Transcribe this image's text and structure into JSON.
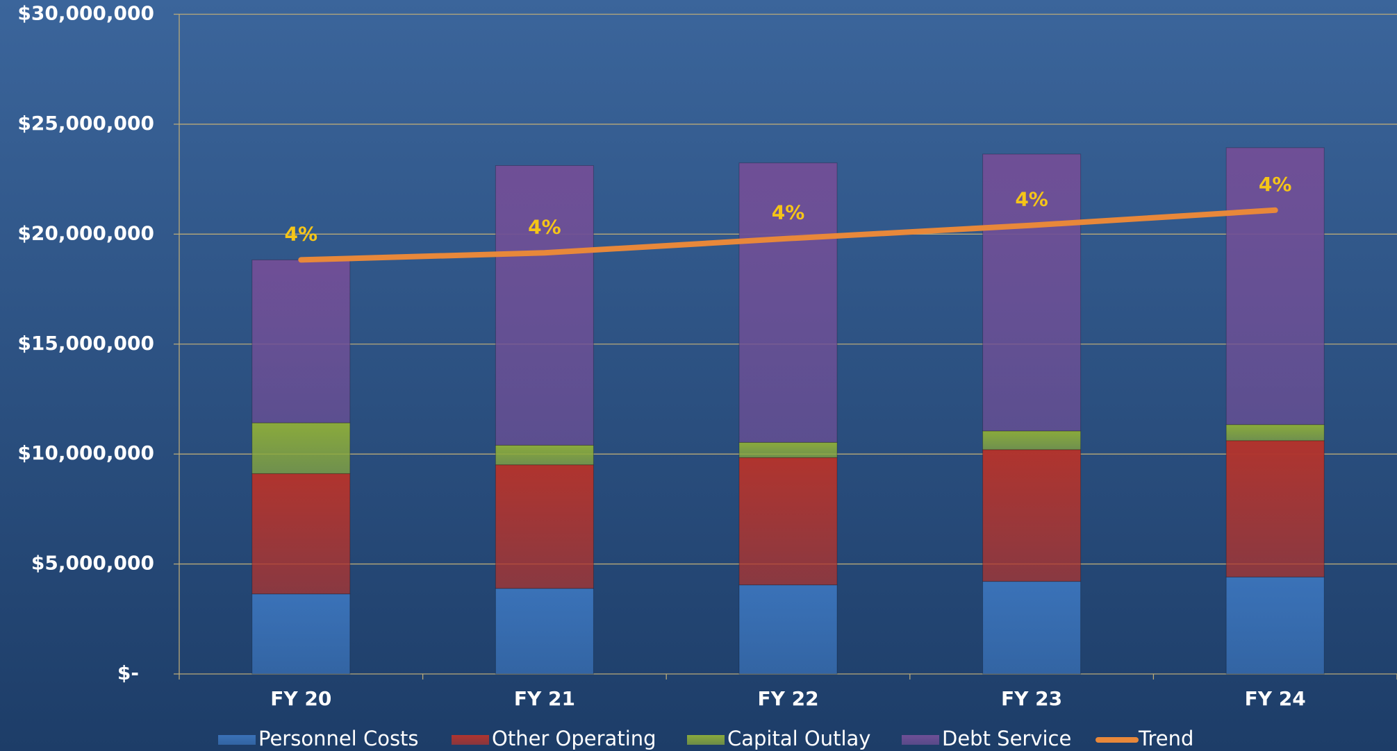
{
  "chart_data": {
    "type": "stacked_bar_line",
    "categories": [
      "FY 20",
      "FY 21",
      "FY 22",
      "FY 23",
      "FY 24"
    ],
    "series": [
      {
        "name": "Personnel Costs",
        "color": "#3a72b8",
        "values": [
          3640000,
          3890000,
          4050000,
          4210000,
          4410000
        ]
      },
      {
        "name": "Other Operating",
        "color": "#b0342e",
        "values": [
          5470000,
          5620000,
          5790000,
          5990000,
          6200000
        ]
      },
      {
        "name": "Capital Outlay",
        "color": "#8aaa3c",
        "values": [
          2310000,
          890000,
          690000,
          850000,
          730000
        ]
      },
      {
        "name": "Debt Service",
        "color": "#6f4f96",
        "values": [
          7410000,
          12720000,
          12710000,
          12590000,
          12590000
        ]
      },
      {
        "name": "Trend",
        "color": "#e8883a",
        "type": "line",
        "values": [
          18830000,
          19150000,
          19800000,
          20400000,
          21090000
        ]
      }
    ],
    "growth": {
      "values": [
        4,
        4,
        4,
        4,
        4
      ],
      "value_labels": [
        "4%",
        "4%",
        "4%",
        "4%",
        "4%"
      ]
    },
    "ylim": [
      0,
      30000000
    ],
    "yticks": [
      {
        "value": 0,
        "label": "$-"
      },
      {
        "value": 5000000,
        "label": "$5,000,000"
      },
      {
        "value": 10000000,
        "label": "$10,000,000"
      },
      {
        "value": 15000000,
        "label": "$15,000,000"
      },
      {
        "value": 20000000,
        "label": "$20,000,000"
      },
      {
        "value": 25000000,
        "label": "$25,000,000"
      },
      {
        "value": 30000000,
        "label": "$30,000,000"
      }
    ],
    "grid": true,
    "legend": "bottom"
  }
}
